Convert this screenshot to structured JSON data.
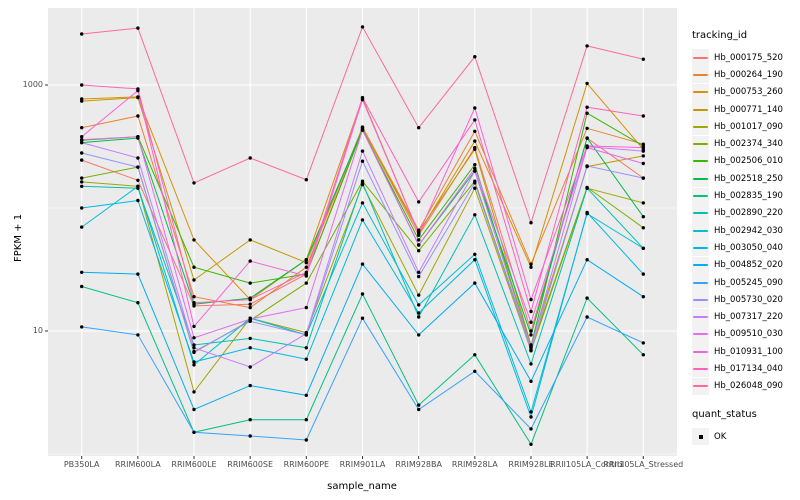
{
  "figure": {
    "y_axis": {
      "title": "FPKM + 1",
      "tick_labels": [
        "1000",
        "10"
      ]
    },
    "x_axis": {
      "title": "sample_name"
    },
    "legend_tracking": {
      "title": "tracking_id"
    },
    "legend_quant": {
      "title": "quant_status",
      "items": [
        {
          "label": "OK"
        }
      ]
    },
    "colors": {
      "panel_background": "#EBEBEB",
      "gridline": "#FFFFFF",
      "tick_text": "#4D4D4D",
      "point": "#000000",
      "legend_key_background": "#F2F2F2"
    }
  },
  "chart_data": {
    "type": "line",
    "title": "",
    "xlabel": "sample_name",
    "ylabel": "FPKM + 1",
    "x_type": "categorical",
    "scale_y": "log10",
    "ylim": [
      0.96,
      4200
    ],
    "yticks_major": [
      10,
      1000
    ],
    "yticks_minor": [
      1,
      100
    ],
    "grid": "on",
    "legend_position": "right",
    "legend_title": "tracking_id",
    "quant_status": "OK",
    "categories": [
      "PB350LA",
      "RRIM600LA",
      "RRIM600LE",
      "RRIM600SE",
      "RRIM600PE",
      "RRIM901LA",
      "RRIM928BA",
      "RRIM928LA",
      "RRIM928LE",
      "RRII105LA_Control",
      "RRII105LA_Stressed"
    ],
    "series": [
      {
        "name": "Hb_000175_520",
        "color": "#F8766D",
        "values": [
          245,
          168,
          16,
          16.5,
          29,
          450,
          60,
          310,
          10,
          370,
          175
        ]
      },
      {
        "name": "Hb_000264_190",
        "color": "#EA8331",
        "values": [
          450,
          560,
          19,
          15.5,
          33,
          455,
          66,
          420,
          35,
          445,
          330
        ]
      },
      {
        "name": "Hb_000753_260",
        "color": "#D89000",
        "values": [
          770,
          800,
          55,
          18,
          38,
          780,
          62,
          350,
          33,
          1030,
          300
        ]
      },
      {
        "name": "Hb_000771_140",
        "color": "#C09B00",
        "values": [
          740,
          790,
          26,
          55,
          36,
          440,
          64,
          300,
          7.7,
          217,
          265
        ]
      },
      {
        "name": "Hb_001017_090",
        "color": "#A3A500",
        "values": [
          163,
          150,
          3.2,
          12.7,
          9.7,
          155,
          19.6,
          145,
          6.9,
          145,
          110
        ]
      },
      {
        "name": "Hb_002374_340",
        "color": "#7CAE00",
        "values": [
          175,
          215,
          6.7,
          12.2,
          24.5,
          165,
          45,
          165,
          7.2,
          147,
          69
        ]
      },
      {
        "name": "Hb_002506_010",
        "color": "#39B600",
        "values": [
          355,
          380,
          33,
          24.5,
          29,
          430,
          55,
          225,
          7.5,
          590,
          320
        ]
      },
      {
        "name": "Hb_002518_250",
        "color": "#00BB4E",
        "values": [
          340,
          370,
          16.5,
          18.5,
          38,
          435,
          50,
          200,
          9.3,
          370,
          85
        ]
      },
      {
        "name": "Hb_002835_190",
        "color": "#00C087",
        "values": [
          23,
          17,
          1.5,
          1.9,
          1.9,
          20,
          2.5,
          6.4,
          1.2,
          18.5,
          6.4
        ]
      },
      {
        "name": "Hb_002890_220",
        "color": "#00C0B2",
        "values": [
          150,
          145,
          7.7,
          8.7,
          7.3,
          160,
          13,
          88,
          5.4,
          145,
          47
        ]
      },
      {
        "name": "Hb_002942_030",
        "color": "#00BFD3",
        "values": [
          70,
          150,
          5.3,
          12.7,
          9.3,
          110,
          16.3,
          42,
          2.2,
          90,
          47
        ]
      },
      {
        "name": "Hb_003050_040",
        "color": "#00B8E7",
        "values": [
          100,
          115,
          5.6,
          7.3,
          5.9,
          80,
          14,
          38,
          2.0,
          92,
          29
        ]
      },
      {
        "name": "Hb_004852_020",
        "color": "#00ACF4",
        "values": [
          30,
          29,
          2.3,
          3.6,
          3.0,
          35,
          9.3,
          24.5,
          3.9,
          38,
          19
        ]
      },
      {
        "name": "Hb_005245_090",
        "color": "#35A2FF",
        "values": [
          10.8,
          9.3,
          1.5,
          1.4,
          1.3,
          12.7,
          2.3,
          4.7,
          1.6,
          13,
          8
        ]
      },
      {
        "name": "Hb_005730_020",
        "color": "#9590FF",
        "values": [
          280,
          215,
          6.8,
          12,
          9.3,
          240,
          27.7,
          160,
          7.0,
          220,
          175
        ]
      },
      {
        "name": "Hb_007317_220",
        "color": "#C77CFF",
        "values": [
          340,
          255,
          7.3,
          5.1,
          9.5,
          290,
          30,
          200,
          7.4,
          315,
          290
        ]
      },
      {
        "name": "Hb_009510_030",
        "color": "#E76BF3",
        "values": [
          360,
          380,
          8.8,
          12.5,
          15.5,
          430,
          50,
          210,
          11.8,
          310,
          230
        ]
      },
      {
        "name": "Hb_010931_100",
        "color": "#FA62DB",
        "values": [
          380,
          900,
          10.9,
          37,
          28,
          760,
          62,
          650,
          18,
          320,
          310
        ]
      },
      {
        "name": "Hb_017134_040",
        "color": "#FF62BC",
        "values": [
          1000,
          930,
          17,
          18,
          30,
          790,
          112,
          520,
          14.4,
          660,
          560
        ]
      },
      {
        "name": "Hb_026048_090",
        "color": "#FF6A98",
        "values": [
          2600,
          2900,
          160,
          255,
          170,
          2970,
          450,
          1700,
          76,
          2080,
          1620
        ]
      }
    ]
  }
}
